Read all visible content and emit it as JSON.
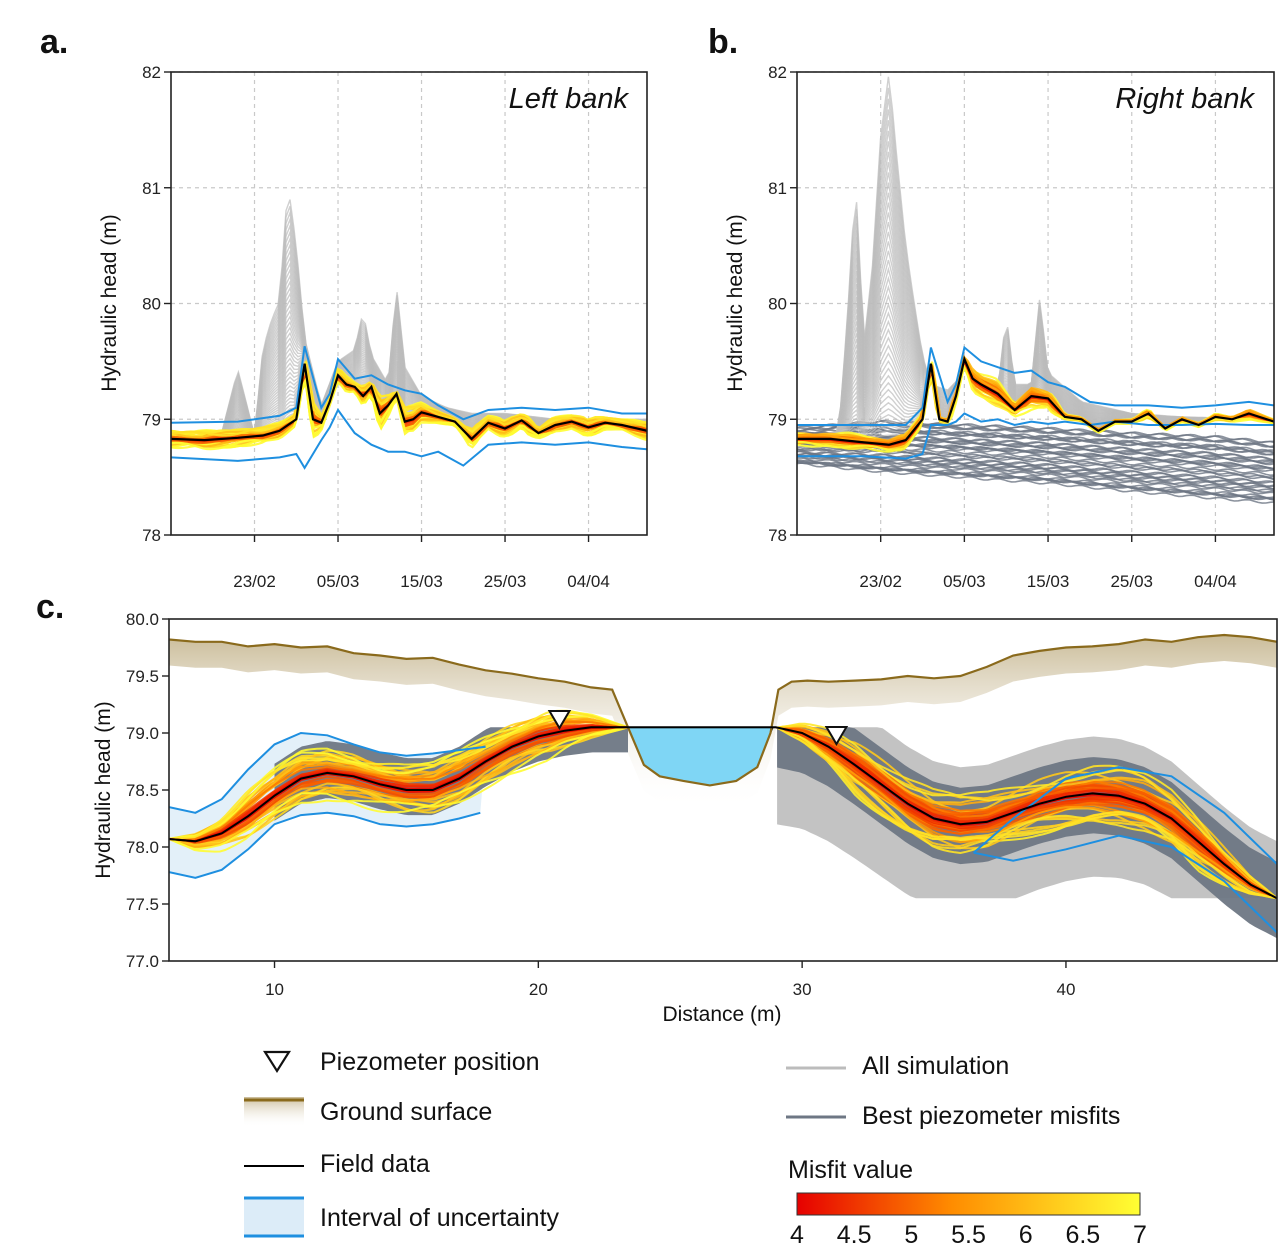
{
  "chart_data": [
    {
      "panel": "a.",
      "type": "line",
      "annotation": "Left bank",
      "ylabel": "Hydraulic head (m)",
      "xlabel": "",
      "x_tick_labels": [
        "23/02",
        "05/03",
        "15/03",
        "25/03",
        "04/04"
      ],
      "x_range_days": [
        0,
        57
      ],
      "x_tick_days": [
        10,
        20,
        30,
        40,
        50
      ],
      "ylim": [
        78,
        82
      ],
      "y_ticks": [
        "78",
        "79",
        "80",
        "81",
        "82"
      ],
      "grid": true,
      "series": [
        {
          "name": "Field data",
          "color": "#000000",
          "x": [
            0,
            4,
            8,
            11,
            13,
            15,
            16,
            17,
            18,
            19,
            20,
            21,
            22,
            23,
            24,
            25,
            26,
            27,
            28,
            29,
            30,
            32,
            34,
            36,
            37,
            38,
            40,
            42,
            44,
            46,
            48,
            50,
            52,
            54,
            57
          ],
          "y": [
            78.83,
            78.82,
            78.84,
            78.86,
            78.9,
            79.0,
            79.48,
            79.0,
            78.97,
            79.15,
            79.38,
            79.3,
            79.28,
            79.2,
            79.28,
            79.05,
            79.12,
            79.22,
            78.98,
            79.0,
            79.06,
            79.02,
            78.98,
            78.83,
            78.9,
            78.97,
            78.92,
            78.99,
            78.88,
            78.95,
            78.98,
            78.93,
            78.97,
            78.95,
            78.9
          ]
        },
        {
          "name": "Interval of uncertainty (upper)",
          "color": "#1e8fe0",
          "x": [
            0,
            8,
            13,
            15,
            16,
            18,
            19,
            20,
            22,
            24,
            26,
            28,
            30,
            32,
            35,
            38,
            42,
            46,
            50,
            54,
            57
          ],
          "y": [
            78.97,
            78.98,
            79.03,
            79.1,
            79.63,
            79.1,
            79.22,
            79.52,
            79.35,
            79.38,
            79.3,
            79.25,
            79.22,
            79.12,
            79.0,
            79.08,
            79.1,
            79.08,
            79.1,
            79.05,
            79.05
          ]
        },
        {
          "name": "Interval of uncertainty (lower)",
          "color": "#1e8fe0",
          "x": [
            0,
            8,
            13,
            15,
            16,
            18,
            19,
            20,
            22,
            24,
            26,
            28,
            30,
            32,
            35,
            38,
            42,
            46,
            50,
            54,
            57
          ],
          "y": [
            78.67,
            78.64,
            78.67,
            78.7,
            78.58,
            78.82,
            78.93,
            79.08,
            78.88,
            78.78,
            78.72,
            78.72,
            78.68,
            78.72,
            78.6,
            78.78,
            78.8,
            78.78,
            78.8,
            78.76,
            78.74
          ]
        },
        {
          "name": "All simulation (envelope peaks)",
          "color": "#bcbcbc",
          "x": [
            0,
            6,
            8,
            10,
            11,
            12,
            13,
            14,
            15,
            16,
            18,
            20,
            22,
            23,
            24,
            26,
            27,
            28,
            30,
            33,
            36,
            40,
            46,
            50,
            57
          ],
          "y": [
            78.84,
            78.86,
            79.43,
            78.86,
            79.6,
            79.85,
            80.02,
            81.03,
            80.5,
            79.7,
            79.12,
            79.5,
            79.6,
            79.93,
            79.55,
            79.3,
            80.15,
            79.45,
            79.2,
            79.1,
            79.05,
            79.05,
            79.0,
            79.0,
            79.0
          ]
        }
      ]
    },
    {
      "panel": "b.",
      "type": "line",
      "annotation": "Right bank",
      "ylabel": "Hydraulic head (m)",
      "xlabel": "",
      "x_tick_labels": [
        "23/02",
        "05/03",
        "15/03",
        "25/03",
        "04/04"
      ],
      "x_range_days": [
        0,
        57
      ],
      "x_tick_days": [
        10,
        20,
        30,
        40,
        50
      ],
      "ylim": [
        78,
        82
      ],
      "y_ticks": [
        "78",
        "79",
        "80",
        "81",
        "82"
      ],
      "grid": true,
      "series": [
        {
          "name": "Field data",
          "color": "#000000",
          "x": [
            0,
            4,
            8,
            11,
            13,
            15,
            16,
            17,
            18,
            19,
            20,
            21,
            22,
            24,
            26,
            28,
            30,
            32,
            34,
            36,
            38,
            40,
            42,
            44,
            46,
            48,
            50,
            52,
            54,
            57
          ],
          "y": [
            78.83,
            78.83,
            78.8,
            78.78,
            78.82,
            79.0,
            79.48,
            79.0,
            78.98,
            79.2,
            79.52,
            79.35,
            79.3,
            79.22,
            79.08,
            79.2,
            79.18,
            79.02,
            79.0,
            78.9,
            78.98,
            78.98,
            79.05,
            78.92,
            79.0,
            78.95,
            79.02,
            79.0,
            79.05,
            78.98
          ]
        },
        {
          "name": "Interval of uncertainty (upper)",
          "color": "#1e8fe0",
          "x": [
            0,
            8,
            13,
            15,
            16,
            18,
            19,
            20,
            22,
            24,
            26,
            28,
            30,
            32,
            35,
            38,
            42,
            46,
            50,
            54,
            57
          ],
          "y": [
            78.95,
            78.95,
            78.95,
            79.1,
            79.62,
            79.15,
            79.3,
            79.62,
            79.5,
            79.45,
            79.4,
            79.42,
            79.32,
            79.28,
            79.15,
            79.12,
            79.12,
            79.1,
            79.12,
            79.15,
            79.12
          ]
        },
        {
          "name": "Interval of uncertainty (lower)",
          "color": "#1e8fe0",
          "x": [
            0,
            8,
            13,
            15,
            16,
            18,
            19,
            20,
            22,
            24,
            26,
            28,
            30,
            32,
            35,
            38,
            42,
            46,
            50,
            54,
            57
          ],
          "y": [
            78.68,
            78.68,
            78.66,
            78.7,
            78.95,
            78.95,
            78.98,
            79.05,
            78.98,
            79.0,
            78.95,
            78.98,
            78.96,
            78.98,
            78.95,
            78.98,
            78.95,
            78.95,
            78.96,
            78.95,
            78.95
          ]
        },
        {
          "name": "All simulation (envelope peaks)",
          "color": "#bcbcbc",
          "x": [
            0,
            5,
            6,
            7,
            8,
            9,
            10,
            11,
            12,
            13,
            14,
            15,
            16,
            18,
            20,
            22,
            24,
            25,
            26,
            28,
            29,
            30,
            34,
            40,
            46,
            57
          ],
          "y": [
            78.82,
            78.9,
            79.85,
            81.05,
            79.65,
            80.3,
            81.45,
            82.0,
            81.2,
            80.5,
            80.0,
            79.55,
            79.3,
            79.25,
            79.4,
            79.3,
            79.25,
            79.9,
            79.3,
            79.3,
            80.05,
            79.4,
            79.15,
            79.05,
            79.02,
            79.0
          ]
        },
        {
          "name": "Best piezometer misfits (band)",
          "color": "#6e7784",
          "x": [
            0,
            10,
            20,
            30,
            40,
            50,
            57
          ],
          "upper": [
            78.92,
            78.98,
            78.95,
            78.92,
            78.88,
            78.85,
            78.8
          ],
          "lower": [
            78.62,
            78.55,
            78.5,
            78.45,
            78.38,
            78.32,
            78.28
          ]
        }
      ]
    },
    {
      "panel": "c.",
      "type": "line",
      "xlabel": "Distance (m)",
      "ylabel": "Hydraulic head (m)",
      "xlim": [
        6,
        48
      ],
      "x_ticks": [
        "10",
        "20",
        "30",
        "40"
      ],
      "ylim": [
        77.0,
        80.0
      ],
      "y_ticks": [
        "77.0",
        "77.5",
        "78.0",
        "78.5",
        "79.0",
        "79.5",
        "80.0"
      ],
      "grid": false,
      "piezometers": [
        {
          "x": 20.8,
          "y": 79.07
        },
        {
          "x": 31.3,
          "y": 78.93
        }
      ],
      "river_water_level": 79.05,
      "series": [
        {
          "name": "Ground surface",
          "color": "#8a6a1c",
          "x": [
            6,
            7,
            8,
            9,
            10,
            11,
            12,
            13,
            14,
            15,
            16,
            17,
            18,
            19,
            20,
            21,
            22,
            22.8,
            23.4,
            24.0,
            24.6,
            25.5,
            26.5,
            27.5,
            28.3,
            28.8,
            29.1,
            29.6,
            30.2,
            31,
            32,
            33,
            34,
            35,
            36,
            37,
            38,
            39,
            40,
            41,
            42,
            43,
            44,
            45,
            46,
            47,
            48
          ],
          "y": [
            79.82,
            79.8,
            79.8,
            79.76,
            79.78,
            79.75,
            79.76,
            79.7,
            79.68,
            79.65,
            79.66,
            79.6,
            79.55,
            79.52,
            79.48,
            79.45,
            79.4,
            79.38,
            79.05,
            78.72,
            78.62,
            78.58,
            78.54,
            78.58,
            78.7,
            79.0,
            79.38,
            79.45,
            79.46,
            79.45,
            79.46,
            79.47,
            79.5,
            79.48,
            79.5,
            79.58,
            79.68,
            79.72,
            79.75,
            79.76,
            79.78,
            79.82,
            79.8,
            79.84,
            79.86,
            79.84,
            79.8
          ]
        },
        {
          "name": "Field data",
          "color": "#000000",
          "x": [
            6,
            7,
            8,
            9,
            10,
            11,
            12,
            13,
            14,
            15,
            16,
            17,
            18,
            19,
            20,
            21,
            22,
            23,
            23.4,
            29,
            30,
            31,
            32,
            33,
            34,
            35,
            36,
            37,
            38,
            39,
            40,
            41,
            42,
            43,
            44,
            45,
            46,
            47,
            48
          ],
          "y": [
            78.07,
            78.05,
            78.12,
            78.27,
            78.45,
            78.6,
            78.65,
            78.62,
            78.55,
            78.5,
            78.5,
            78.6,
            78.75,
            78.88,
            78.97,
            79.02,
            79.05,
            79.05,
            79.05,
            79.05,
            79.0,
            78.88,
            78.72,
            78.55,
            78.38,
            78.25,
            78.2,
            78.22,
            78.3,
            78.38,
            78.44,
            78.47,
            78.45,
            78.38,
            78.25,
            78.05,
            77.85,
            77.67,
            77.55
          ]
        },
        {
          "name": "Interval of uncertainty (upper)",
          "color": "#1e8fe0",
          "x": [
            6,
            7,
            8,
            9,
            10,
            11,
            12,
            13,
            14,
            15,
            16,
            17,
            18
          ],
          "y": [
            78.35,
            78.3,
            78.42,
            78.68,
            78.9,
            79.0,
            78.98,
            78.9,
            78.83,
            78.8,
            78.82,
            78.85,
            78.88
          ]
        },
        {
          "name": "Interval of uncertainty (lower)",
          "color": "#1e8fe0",
          "x": [
            6,
            7,
            8,
            9,
            10,
            11,
            12,
            13,
            14,
            15,
            16,
            17,
            17.8
          ],
          "y": [
            77.78,
            77.73,
            77.8,
            77.98,
            78.2,
            78.28,
            78.3,
            78.27,
            78.2,
            78.18,
            78.2,
            78.25,
            78.3
          ]
        },
        {
          "name": "Interval of uncertainty (upper, right)",
          "color": "#1e8fe0",
          "x": [
            36.5,
            38,
            40,
            42,
            44,
            46,
            48
          ],
          "y": [
            77.95,
            78.25,
            78.6,
            78.7,
            78.62,
            78.3,
            77.85
          ]
        },
        {
          "name": "Interval of uncertainty (lower, right)",
          "color": "#1e8fe0",
          "x": [
            36.5,
            38,
            40,
            42,
            44,
            46,
            48
          ],
          "y": [
            77.95,
            77.88,
            77.98,
            78.1,
            78.0,
            77.7,
            77.25
          ]
        }
      ]
    }
  ],
  "legend": {
    "piezometer": "Piezometer position",
    "ground": "Ground surface",
    "field": "Field data",
    "uncertainty": "Interval of uncertainty",
    "all_sim": "All simulation",
    "best": "Best piezometer misfits",
    "misfit_title": "Misfit value",
    "misfit_ticks": [
      "4",
      "4.5",
      "5",
      "5.5",
      "6",
      "6.5",
      "7"
    ]
  },
  "colors": {
    "field": "#000000",
    "uncertainty": "#1e8fe0",
    "uncertainty_fill": "#dcecf8",
    "all_sim": "#bcbcbc",
    "best": "#6e7784",
    "ground": "#8a6a1c",
    "water": "#7fd6f5",
    "misfit_low": "#e60000",
    "misfit_mid": "#ff8c00",
    "misfit_high": "#ffff33"
  }
}
